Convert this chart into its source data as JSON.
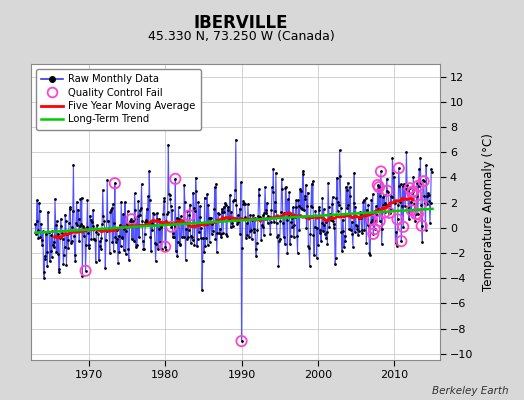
{
  "title": "IBERVILLE",
  "subtitle": "45.330 N, 73.250 W (Canada)",
  "ylabel": "Temperature Anomaly (°C)",
  "credit": "Berkeley Earth",
  "ylim": [
    -10.5,
    13
  ],
  "xlim": [
    1962.5,
    2016.0
  ],
  "xticks": [
    1970,
    1980,
    1990,
    2000,
    2010
  ],
  "yticks": [
    -10,
    -8,
    -6,
    -4,
    -2,
    0,
    2,
    4,
    6,
    8,
    10,
    12
  ],
  "bg_color": "#d8d8d8",
  "plot_bg_color": "#ffffff",
  "grid_color": "#cccccc",
  "raw_line_color": "#3333ff",
  "raw_dot_color": "#000000",
  "qc_fail_color": "#ff44cc",
  "moving_avg_color": "#ff0000",
  "trend_color": "#00cc00",
  "start_year": 1963.0,
  "end_year": 2015.0,
  "seed": 42,
  "n_months": 624
}
